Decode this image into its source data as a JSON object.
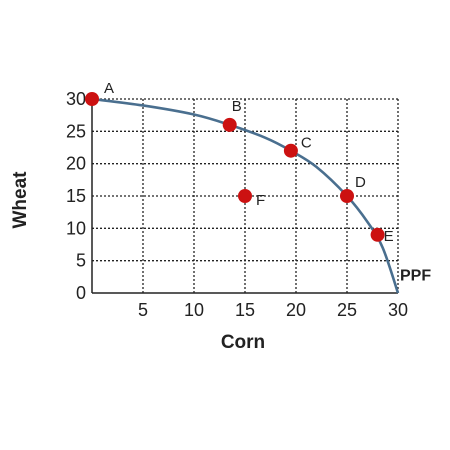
{
  "chart_data": {
    "type": "line",
    "title": "",
    "xlabel": "Corn",
    "ylabel": "Wheat",
    "xlim": [
      0,
      30
    ],
    "ylim": [
      0,
      30
    ],
    "x_ticks": [
      5,
      10,
      15,
      20,
      25,
      30
    ],
    "y_ticks": [
      0,
      5,
      10,
      15,
      20,
      25,
      30
    ],
    "grid": true,
    "curve": {
      "label": "PPF",
      "color": "#4a6f8f",
      "x": [
        0,
        5,
        10,
        13.5,
        17,
        19.5,
        22,
        25,
        27,
        28.5,
        30
      ],
      "y": [
        30,
        29,
        27.6,
        26,
        24,
        22,
        19.5,
        15,
        11,
        7,
        0
      ]
    },
    "points": [
      {
        "label": "A",
        "x": 0,
        "y": 30
      },
      {
        "label": "B",
        "x": 13.5,
        "y": 26
      },
      {
        "label": "C",
        "x": 19.5,
        "y": 22
      },
      {
        "label": "D",
        "x": 25,
        "y": 15
      },
      {
        "label": "E",
        "x": 28,
        "y": 9
      },
      {
        "label": "F",
        "x": 15,
        "y": 15
      }
    ],
    "point_color": "#cc1111"
  }
}
